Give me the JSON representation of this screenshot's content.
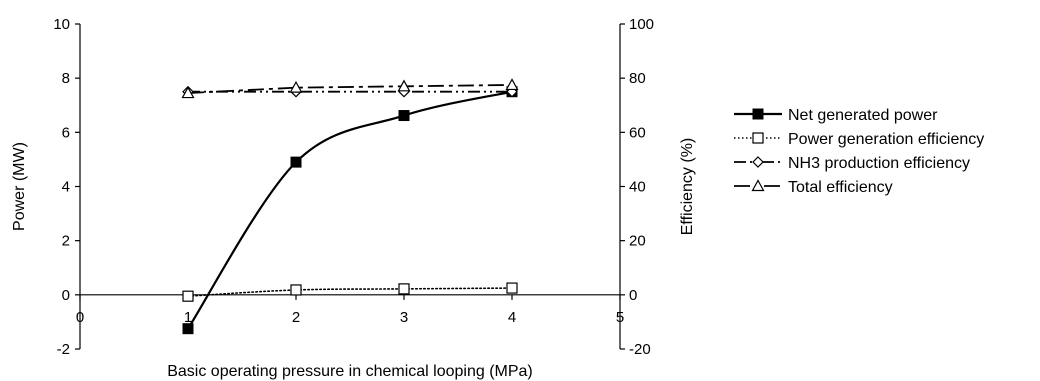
{
  "chart_data": {
    "type": "line",
    "title": "",
    "xlabel": "Basic operating pressure in chemical looping (MPa)",
    "ylabel_left": "Power (MW)",
    "ylabel_right": "Efficiency (%)",
    "xlim": [
      0,
      5
    ],
    "ylim_left": [
      -2,
      10
    ],
    "ylim_right": [
      -20,
      100
    ],
    "x_ticks": [
      "0",
      "1",
      "2",
      "3",
      "4",
      "5"
    ],
    "y_left_ticks": [
      "-2",
      "0",
      "2",
      "4",
      "6",
      "8",
      "10"
    ],
    "y_right_ticks": [
      "-20",
      "0",
      "20",
      "40",
      "60",
      "80",
      "100"
    ],
    "grid": false,
    "legend_position": "right",
    "x": [
      1,
      2,
      3,
      4
    ],
    "series": [
      {
        "name": "Net generated power",
        "axis": "left",
        "values": [
          -1.25,
          4.9,
          6.62,
          7.5
        ],
        "marker": "square-filled",
        "line": "solid",
        "smooth": true
      },
      {
        "name": "Power generation efficiency",
        "axis": "right",
        "values": [
          -0.5,
          1.8,
          2.2,
          2.5
        ],
        "marker": "square-open",
        "line": "dotted",
        "smooth": true
      },
      {
        "name": "NH3 production efficiency",
        "axis": "right",
        "values": [
          75,
          75,
          75,
          75
        ],
        "marker": "diamond-open",
        "line": "dash-dot-dot",
        "smooth": false
      },
      {
        "name": "Total efficiency",
        "axis": "right",
        "values": [
          74.5,
          76.5,
          77,
          77.5
        ],
        "marker": "triangle-open",
        "line": "long-dash",
        "smooth": false
      }
    ]
  }
}
